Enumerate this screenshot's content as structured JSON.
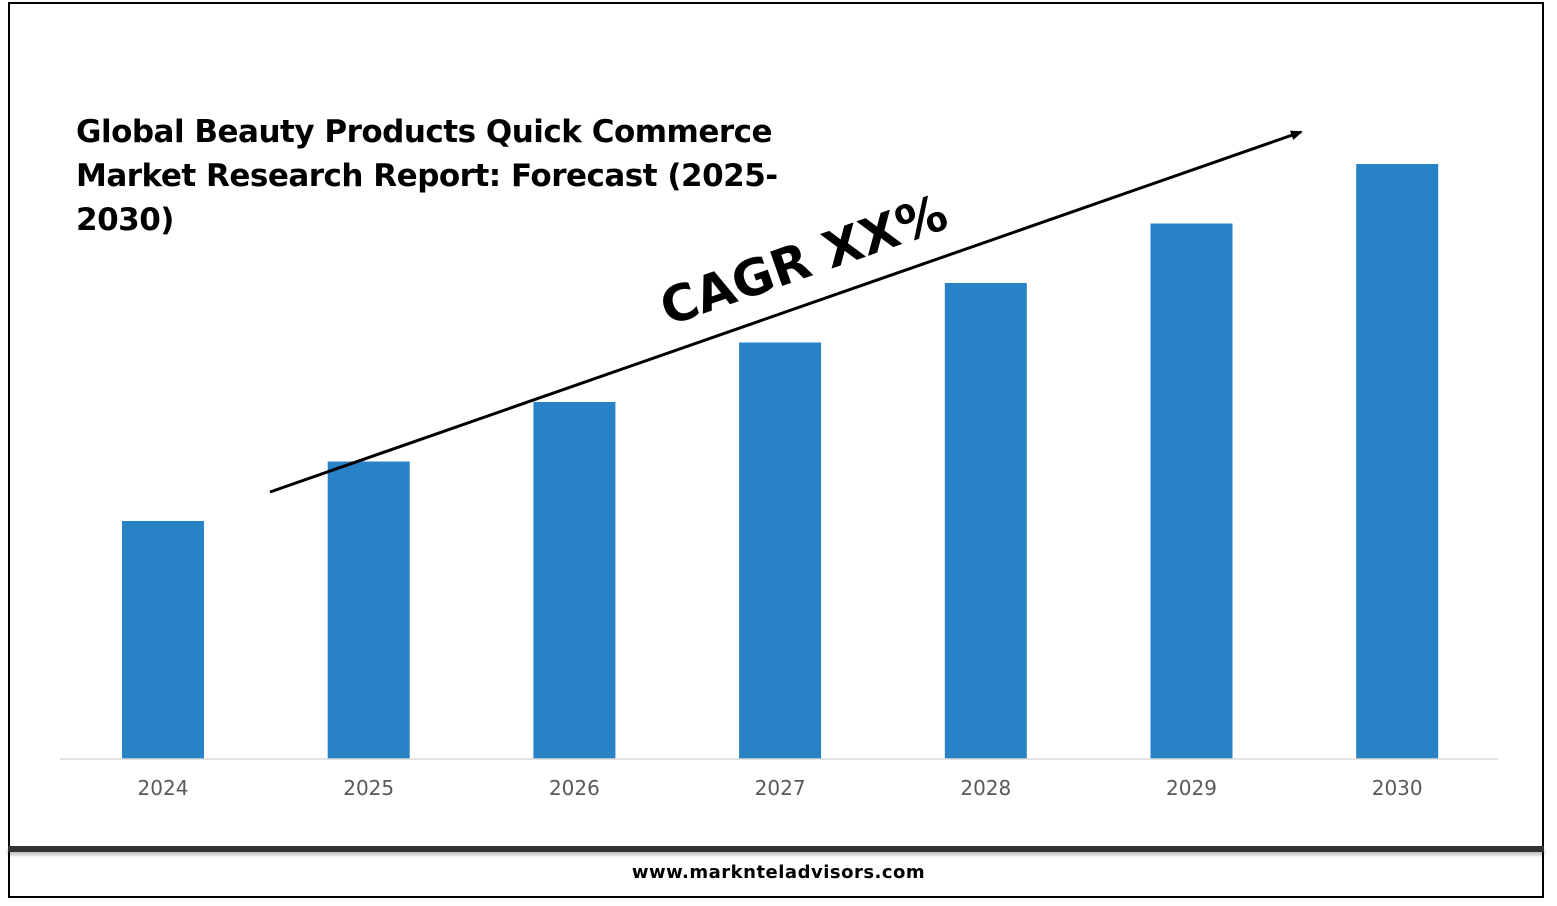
{
  "chart_data": {
    "type": "bar",
    "title": "Global Beauty Products Quick Commerce Market Research Report: Forecast (2025-2030)",
    "categories": [
      "2024",
      "2025",
      "2026",
      "2027",
      "2028",
      "2029",
      "2030"
    ],
    "values": [
      1.0,
      1.25,
      1.5,
      1.75,
      2.0,
      2.25,
      2.5
    ],
    "annotation": "CAGR XX%",
    "xlabel": "",
    "ylabel": "",
    "y_axis_shown": false,
    "grid": false,
    "legend": "none",
    "bar_color": "#2981C6",
    "arrow_color": "#000000"
  },
  "footer": {
    "url": "www.marknteladvisors.com"
  }
}
